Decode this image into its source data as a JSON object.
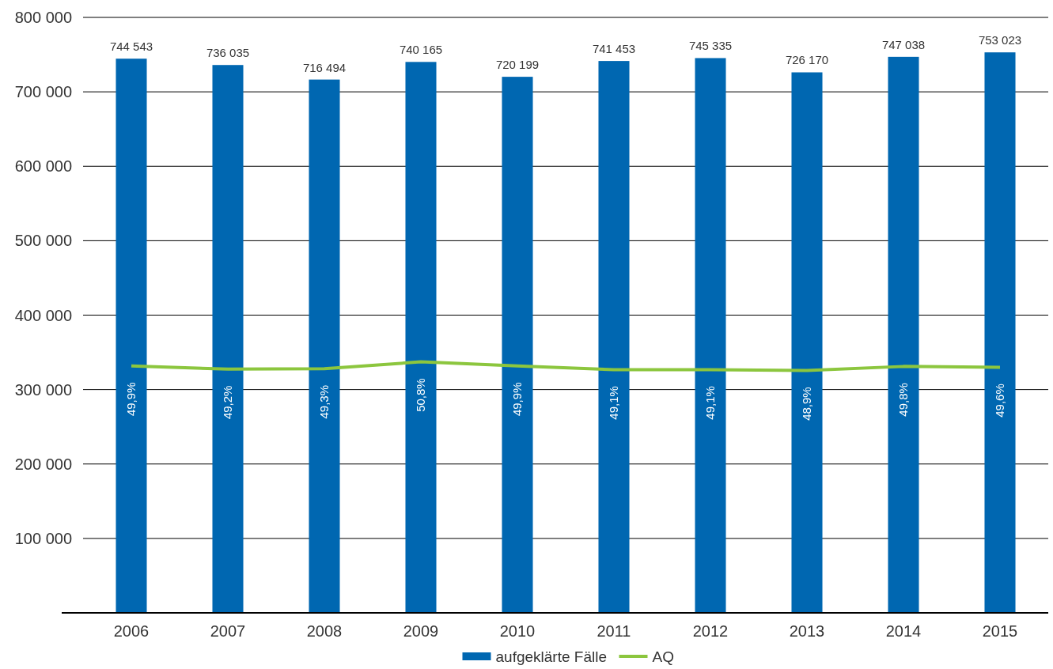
{
  "chart_data": {
    "type": "bar",
    "categories": [
      "2006",
      "2007",
      "2008",
      "2009",
      "2010",
      "2011",
      "2012",
      "2013",
      "2014",
      "2015"
    ],
    "series": [
      {
        "name": "aufgeklärte Fälle",
        "color": "#0067b1",
        "values": [
          744543,
          736035,
          716494,
          740165,
          720199,
          741453,
          745335,
          726170,
          747038,
          753023
        ],
        "value_labels": [
          "744 543",
          "736 035",
          "716 494",
          "740 165",
          "720 199",
          "741 453",
          "745 335",
          "726 170",
          "747 038",
          "753 023"
        ]
      },
      {
        "name": "AQ",
        "type": "line",
        "axis": "y2",
        "color": "#8cc63e",
        "values": [
          49.9,
          49.2,
          49.3,
          50.8,
          49.9,
          49.1,
          49.1,
          48.9,
          49.8,
          49.6
        ],
        "value_labels": [
          "49,9%",
          "49,2%",
          "49,3%",
          "50,8%",
          "49,9%",
          "49,1%",
          "49,1%",
          "48,9%",
          "49,8%",
          "49,6%"
        ]
      }
    ],
    "ylim": [
      0,
      800000
    ],
    "yticks": [
      {
        "value": 0,
        "label": null
      },
      {
        "value": 100000,
        "label": "100 000"
      },
      {
        "value": 200000,
        "label": "200 000"
      },
      {
        "value": 300000,
        "label": "300 000"
      },
      {
        "value": 400000,
        "label": "400 000"
      },
      {
        "value": 500000,
        "label": "500 000"
      },
      {
        "value": 600000,
        "label": "600 000"
      },
      {
        "value": 700000,
        "label": "700 000"
      },
      {
        "value": 800000,
        "label": "800 000"
      }
    ],
    "y2lim": [
      -4,
      126
    ],
    "grid": "y",
    "legend": "bottom",
    "marker": "none",
    "line_style": "solid"
  }
}
